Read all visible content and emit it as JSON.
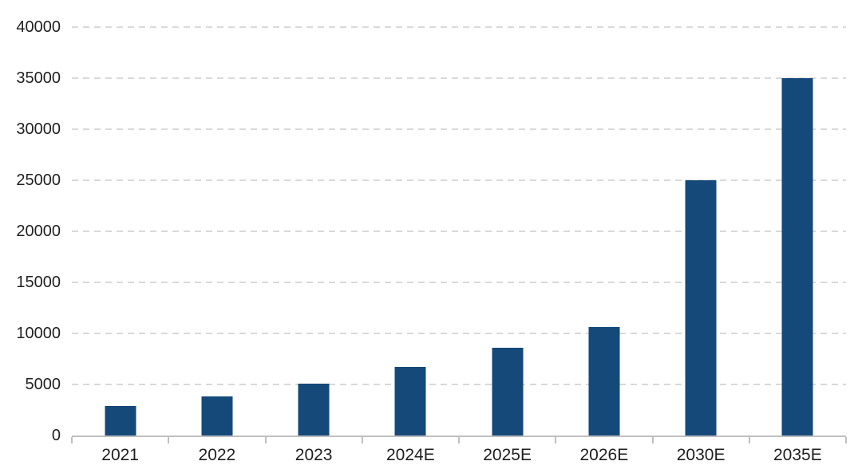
{
  "chart_data": {
    "type": "bar",
    "title": "",
    "xlabel": "",
    "ylabel": "",
    "categories": [
      "2021",
      "2022",
      "2023",
      "2024E",
      "2025E",
      "2026E",
      "2030E",
      "2035E"
    ],
    "values": [
      2900,
      3800,
      5100,
      6700,
      8600,
      10600,
      25000,
      35000
    ],
    "ylim": [
      0,
      40000
    ],
    "ytick_step": 5000,
    "ytick_labels": [
      "0",
      "5000",
      "10000",
      "15000",
      "20000",
      "25000",
      "30000",
      "35000",
      "40000"
    ],
    "grid": "horizontal-dashed",
    "legend_position": "none",
    "colors": {
      "bar": "#14497A",
      "axis_line": "#bfbfbf",
      "gridline": "#d9d9d9",
      "tick_label": "#1f1f1f",
      "background": "#ffffff"
    }
  }
}
